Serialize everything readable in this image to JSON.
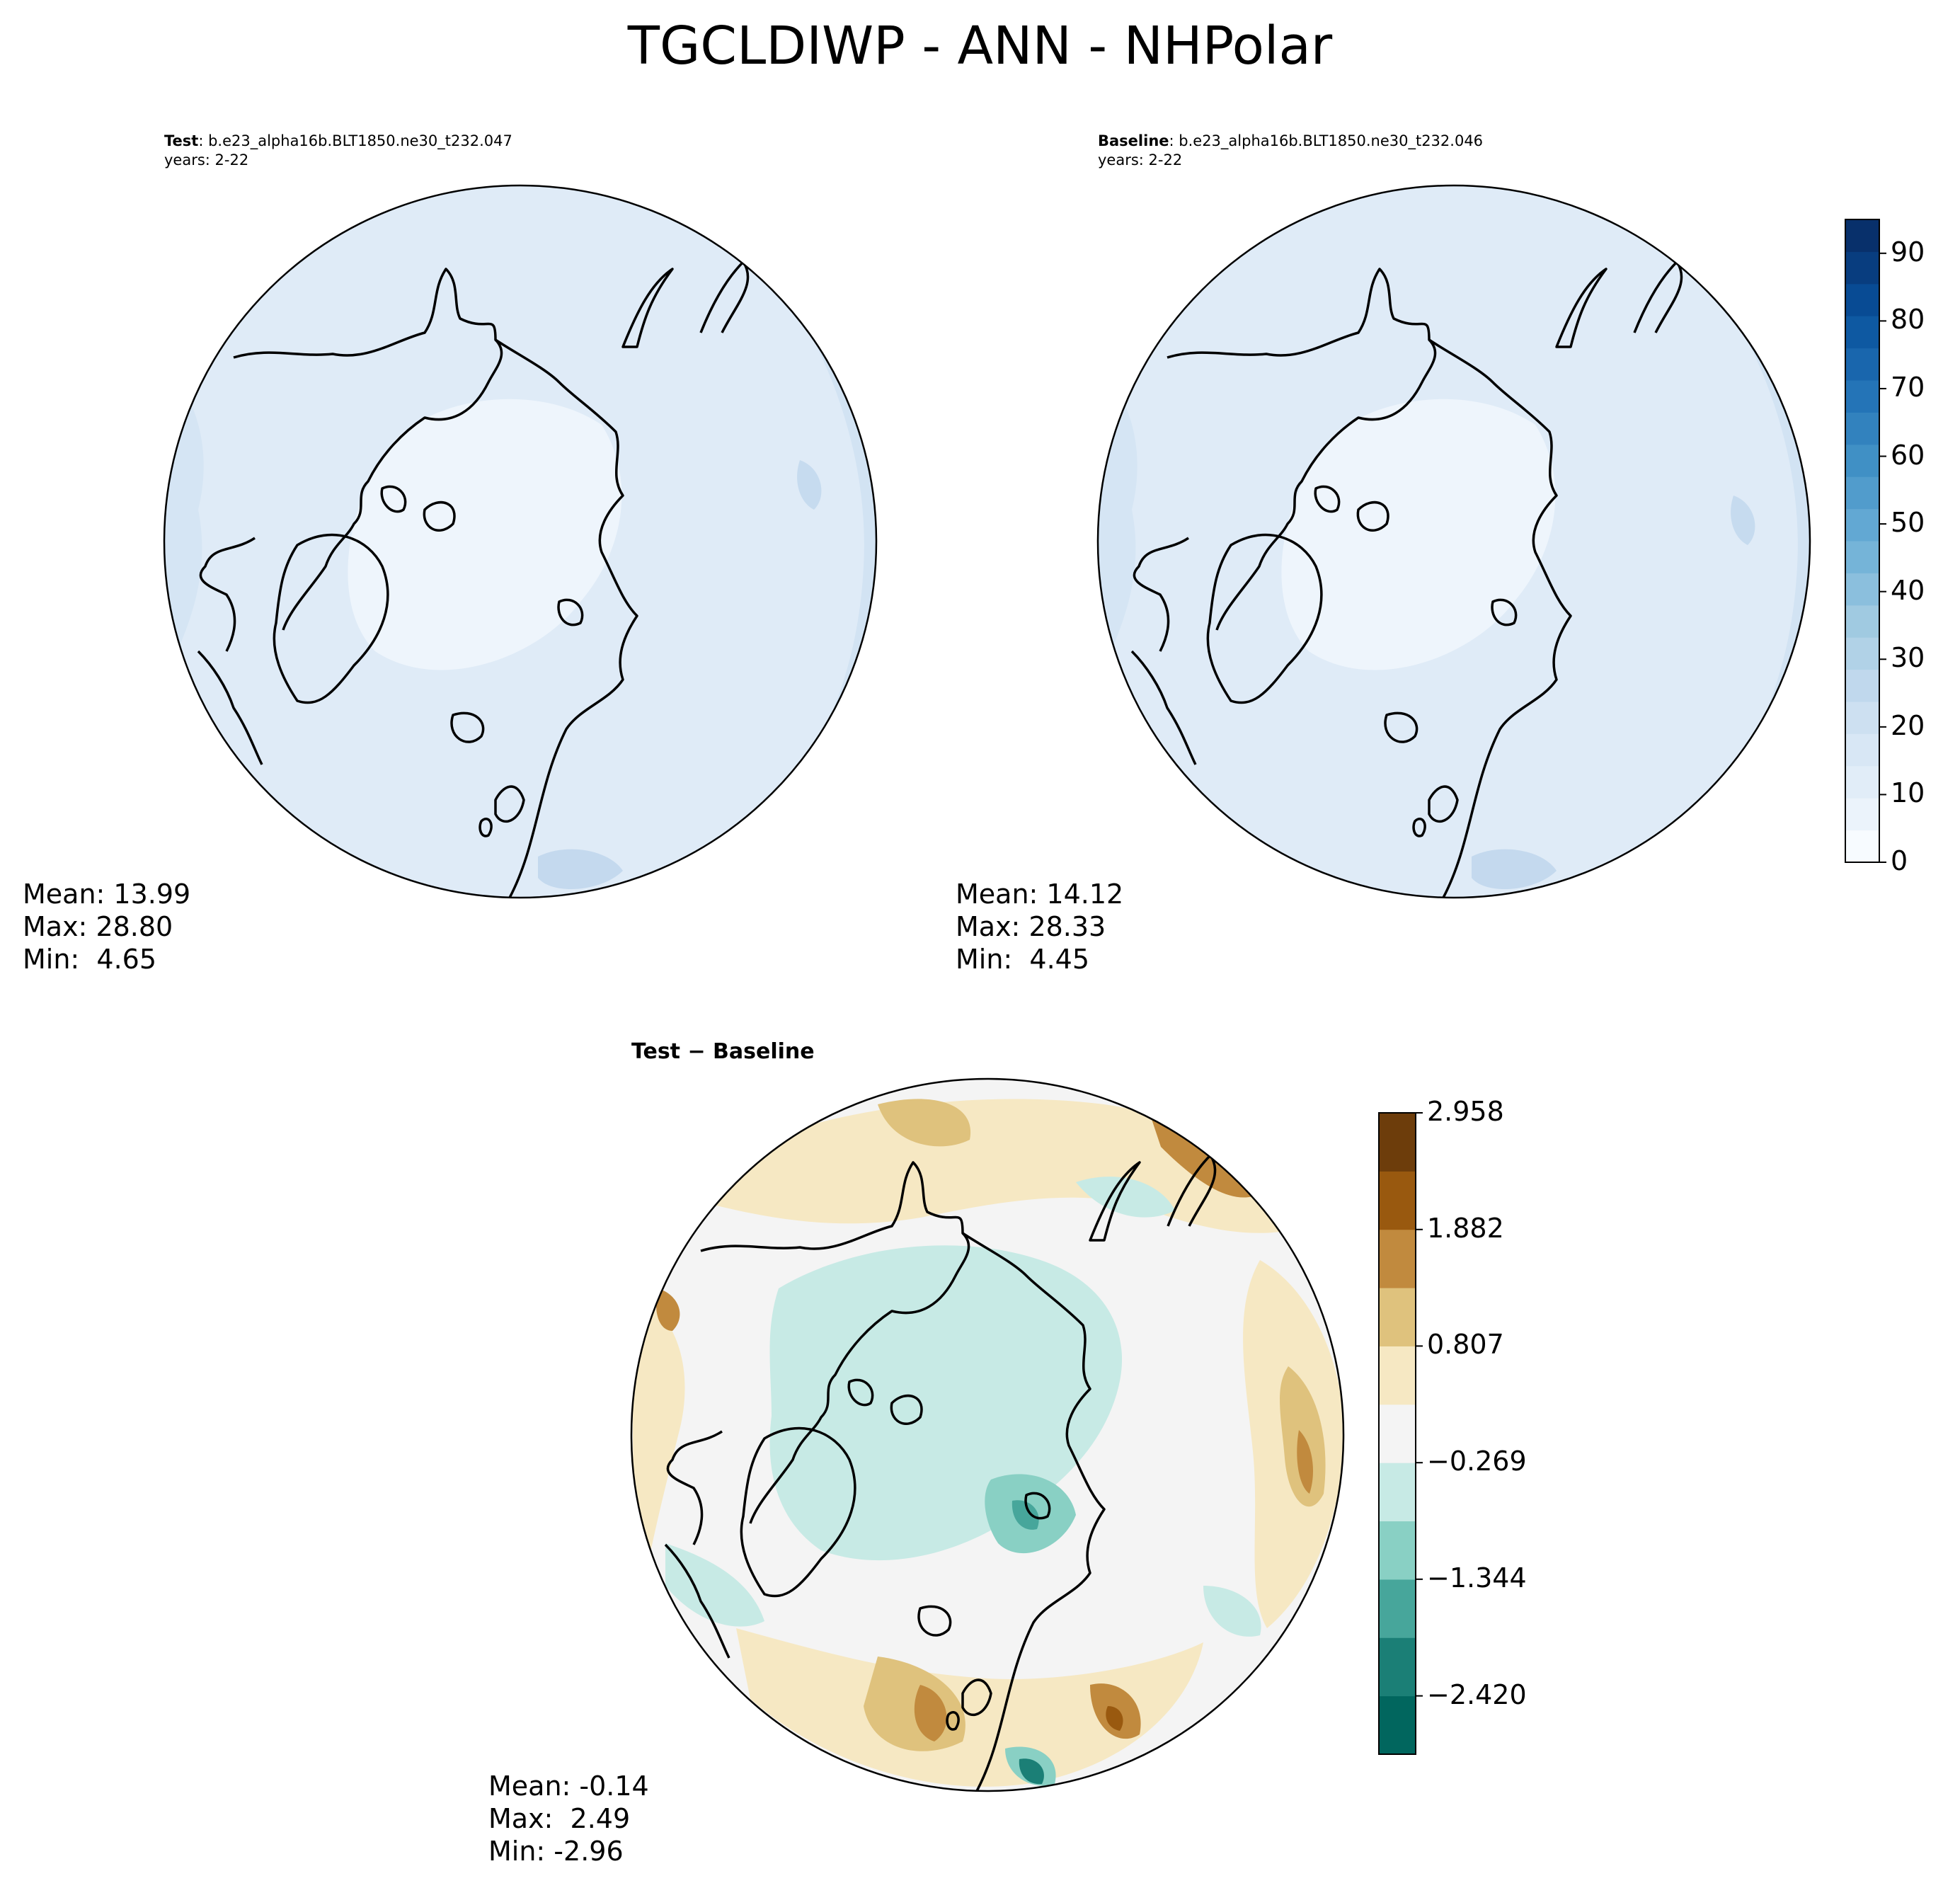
{
  "title": "TGCLDIWP - ANN - NHPolar",
  "panels": [
    {
      "id": "test",
      "header_bold": "Test",
      "header_rest": ": b.e23_alpha16b.BLT1850.ne30_t232.047",
      "years": "years: 2-22",
      "stats": {
        "mean": "Mean: 13.99",
        "max": "Max: 28.80",
        "min": "Min:  4.65"
      }
    },
    {
      "id": "baseline",
      "header_bold": "Baseline",
      "header_rest": ": b.e23_alpha16b.BLT1850.ne30_t232.046",
      "years": "years: 2-22",
      "stats": {
        "mean": "Mean: 14.12",
        "max": "Max: 28.33",
        "min": "Min:  4.45"
      }
    },
    {
      "id": "diff",
      "header": "Test − Baseline",
      "stats": {
        "mean": "Mean: -0.14",
        "max": "Max:  2.49",
        "min": "Min: -2.96"
      }
    }
  ],
  "colorbars": {
    "main": {
      "ticks": [
        "0",
        "10",
        "20",
        "30",
        "40",
        "50",
        "60",
        "70",
        "80",
        "90"
      ],
      "colors": [
        "#f7fbff",
        "#ebf3fb",
        "#e1edf8",
        "#d8e7f5",
        "#cde0f1",
        "#c0d8ed",
        "#b1d2e7",
        "#a0cae1",
        "#8bbfdd",
        "#75b4d8",
        "#62a8d3",
        "#519ccc",
        "#4090c5",
        "#3282be",
        "#2474b7",
        "#1966ad",
        "#0e59a2",
        "#084b94",
        "#083d7f",
        "#08306b"
      ]
    },
    "diff": {
      "ticks": [
        "2.958",
        "1.882",
        "0.807",
        "−0.269",
        "−1.344",
        "−2.420"
      ],
      "colors": [
        "#01665e",
        "#1b7f76",
        "#47a69b",
        "#89d0c4",
        "#c7eae5",
        "#f4f4f4",
        "#f6e8c3",
        "#dfc27d",
        "#c18a3e",
        "#99590f",
        "#6d3d0b"
      ]
    }
  },
  "colors": {
    "map_base": "#dfebf7",
    "map_inner": "#eef5fc",
    "map_outer": "#d2e3f3",
    "coast": "#000000",
    "diff_base": "#f4f4f4"
  }
}
